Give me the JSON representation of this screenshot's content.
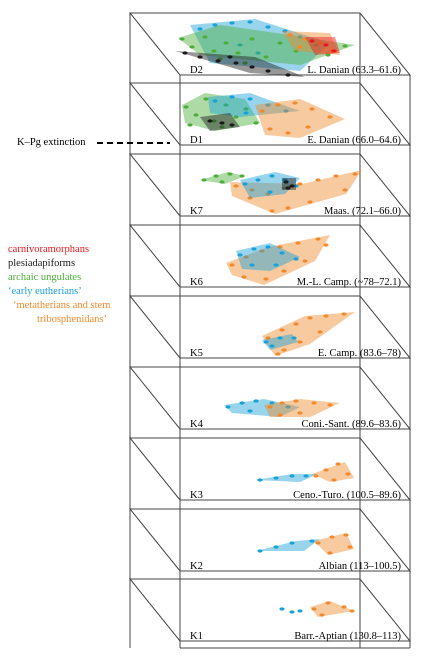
{
  "extinction_label": "K–Pg extinction",
  "legend": [
    {
      "text": "carnivoramorphans",
      "color": "#e8191e"
    },
    {
      "text": "plesiadapiforms",
      "color": "#1a1a1a"
    },
    {
      "text": "archaic ungulates",
      "color": "#4cae3a"
    },
    {
      "text": "‘early eutherians’",
      "color": "#1aa2d8"
    },
    {
      "text": "‘metatherians and stem",
      "color": "#f08a2c"
    },
    {
      "text": "tribosphenidans’",
      "color": "#f08a2c"
    }
  ],
  "colors": {
    "carnivoramorphans": "#e8191e",
    "plesiadapiforms": "#1a1a1a",
    "archaic_ungulates": "#4cae3a",
    "early_eutherians": "#1aa2d8",
    "metatherians": "#f08a2c",
    "frame": "#444444"
  },
  "layers": [
    {
      "code": "D2",
      "label": "L. Danian (63.3–61.6)"
    },
    {
      "code": "D1",
      "label": "E. Danian (66.0–64.6)"
    },
    {
      "code": "K7",
      "label": "Maas. (72.1–66.0)"
    },
    {
      "code": "K6",
      "label": "M.-L. Camp. (~78–72.1)"
    },
    {
      "code": "K5",
      "label": "E. Camp. (83.6–78)"
    },
    {
      "code": "K4",
      "label": "Coni.-Sant. (89.6–83.6)"
    },
    {
      "code": "K3",
      "label": "Ceno.-Turo. (100.5–89.6)"
    },
    {
      "code": "K2",
      "label": "Albian (113–100.5)"
    },
    {
      "code": "K1",
      "label": "Barr.-Aptian (130.8–113)"
    }
  ]
}
